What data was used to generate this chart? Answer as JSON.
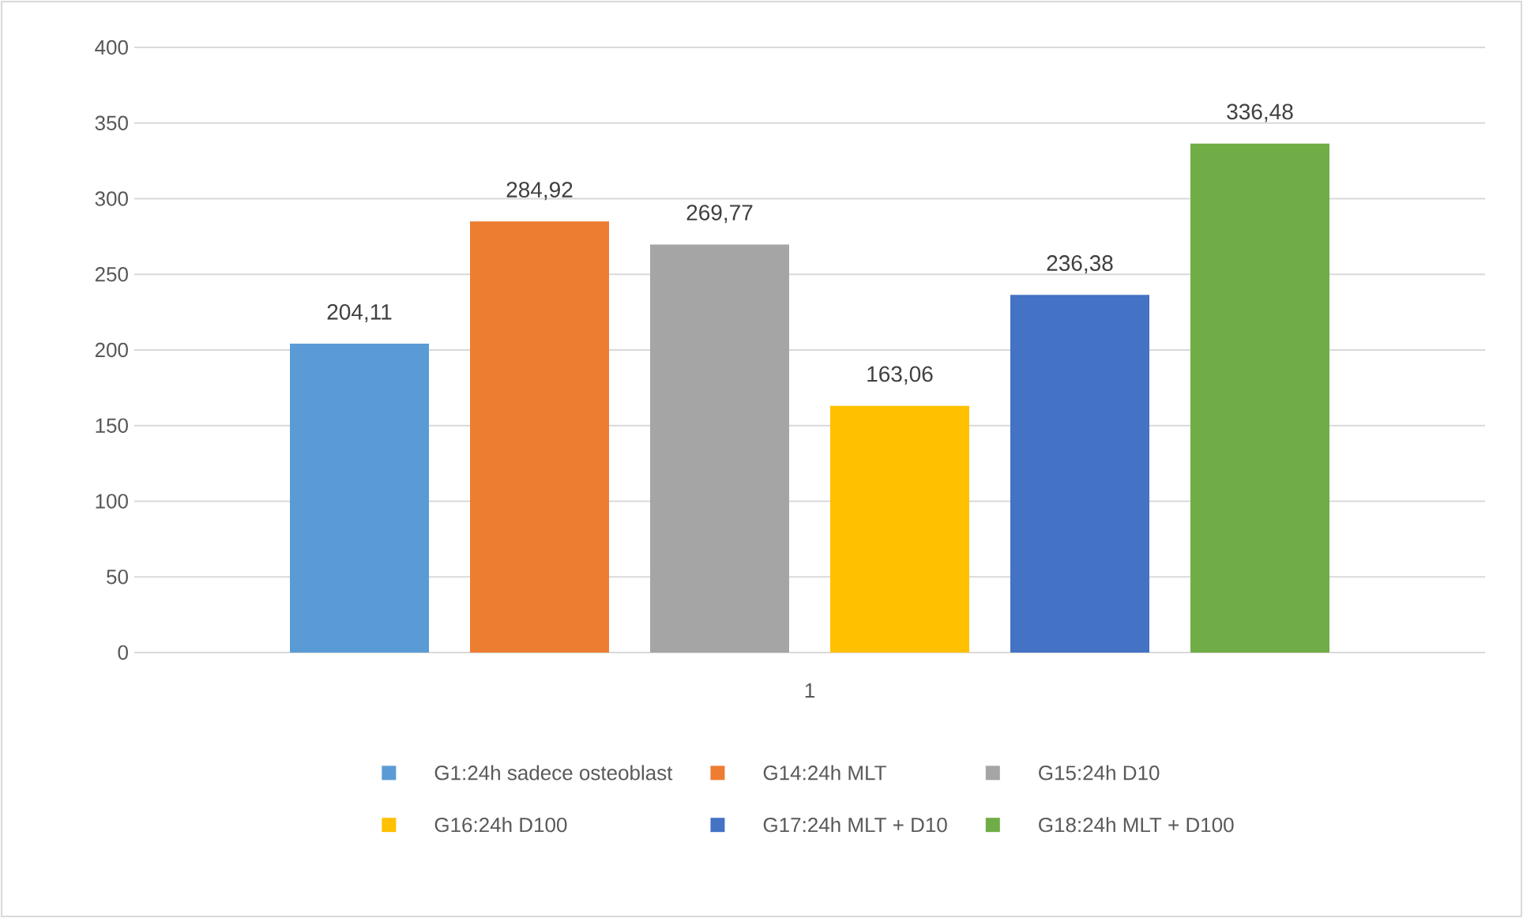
{
  "chart_data": {
    "type": "bar",
    "categories": [
      "1"
    ],
    "series": [
      {
        "name": "G1:24h sadece osteoblast",
        "color": "#5b9bd5",
        "values": [
          204.11
        ],
        "value_labels": [
          "204,11"
        ]
      },
      {
        "name": "G14:24h MLT",
        "color": "#ed7d31",
        "values": [
          284.92
        ],
        "value_labels": [
          "284,92"
        ]
      },
      {
        "name": "G15:24h D10",
        "color": "#a5a5a5",
        "values": [
          269.77
        ],
        "value_labels": [
          "269,77"
        ]
      },
      {
        "name": "G16:24h D100",
        "color": "#ffc000",
        "values": [
          163.06
        ],
        "value_labels": [
          "163,06"
        ]
      },
      {
        "name": "G17:24h MLT + D10",
        "color": "#4472c4",
        "values": [
          236.38
        ],
        "value_labels": [
          "236,38"
        ]
      },
      {
        "name": "G18:24h MLT + D100",
        "color": "#70ad47",
        "values": [
          336.48
        ],
        "value_labels": [
          "336,48"
        ]
      }
    ],
    "ylim": [
      0,
      400
    ],
    "yticks": [
      0,
      50,
      100,
      150,
      200,
      250,
      300,
      350,
      400
    ],
    "grid": "y",
    "legend": "bottom"
  }
}
